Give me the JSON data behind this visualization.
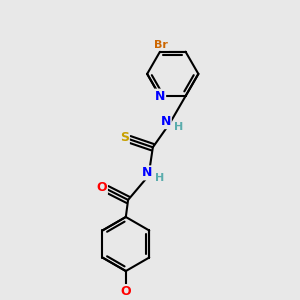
{
  "bg_color": "#e8e8e8",
  "atom_colors": {
    "C": "#000000",
    "N": "#0000ff",
    "O": "#ff0000",
    "S": "#c8a000",
    "Br": "#cc6600",
    "H": "#5aacac"
  },
  "bond_color": "#000000",
  "bond_width": 1.5,
  "figsize": [
    3.0,
    3.0
  ],
  "dpi": 100
}
